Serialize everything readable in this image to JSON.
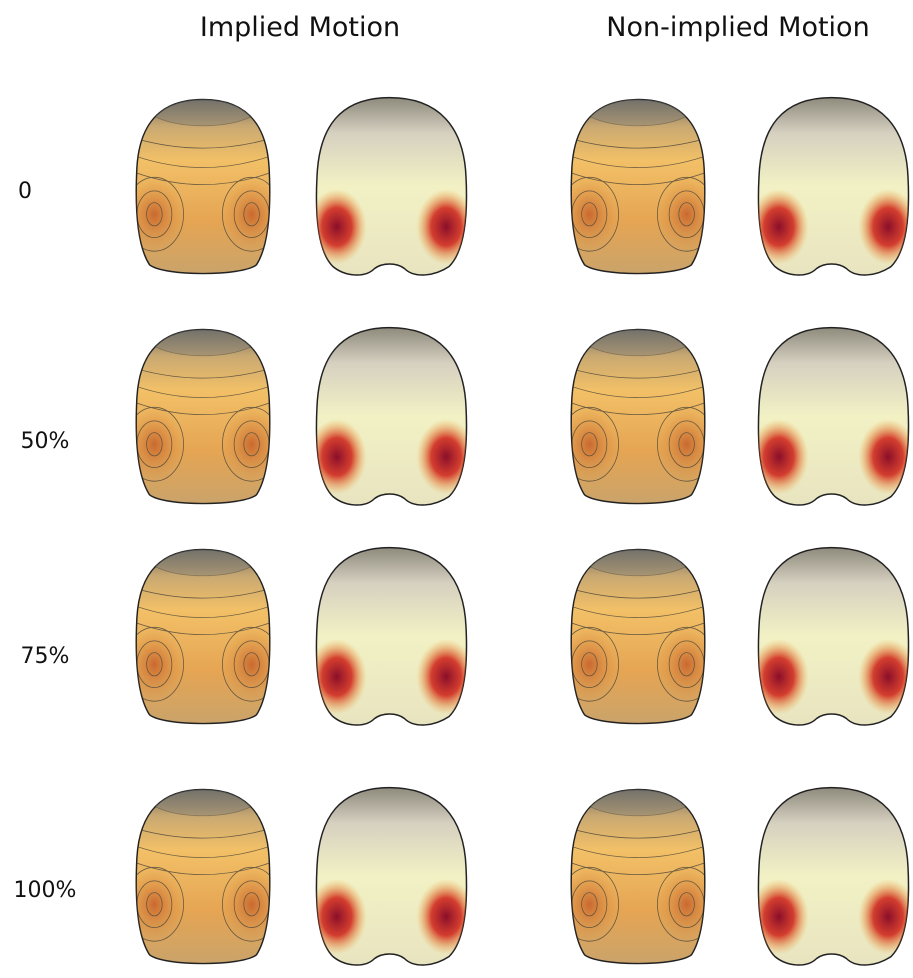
{
  "columns": [
    "Implied Motion",
    "Non-implied Motion"
  ],
  "rows": [
    "0",
    "50%",
    "75%",
    "100%"
  ]
}
